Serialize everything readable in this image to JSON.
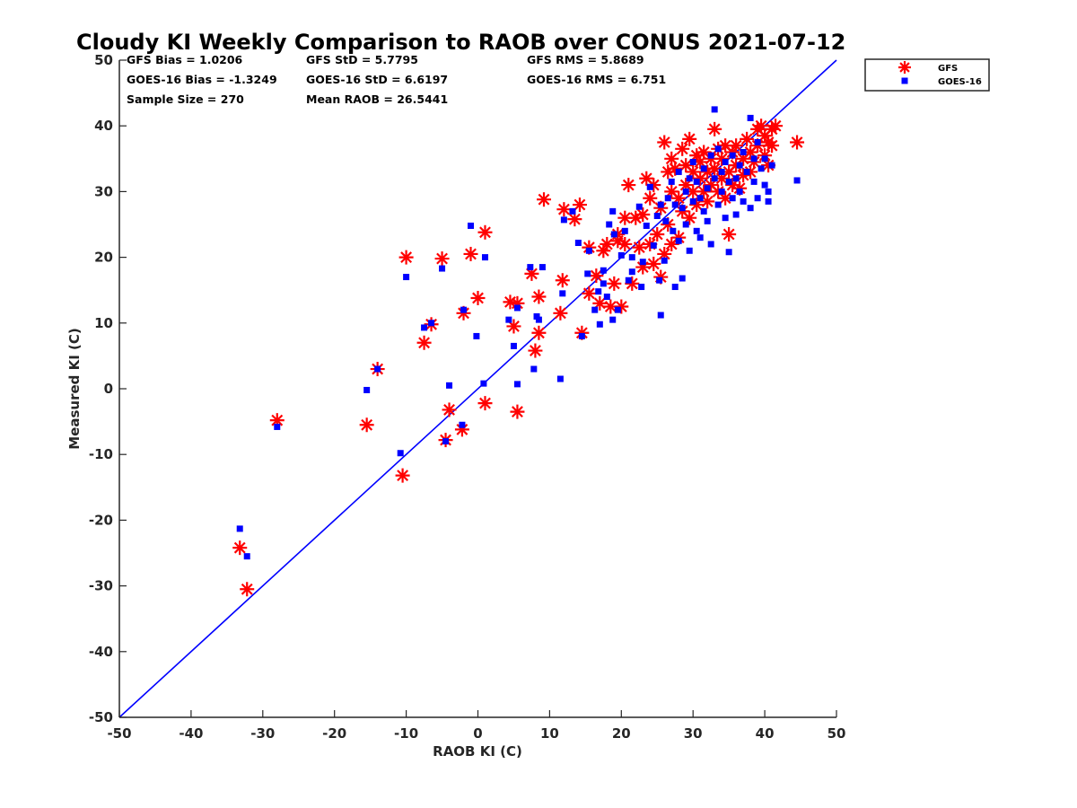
{
  "chart_data": {
    "type": "scatter",
    "title": "Cloudy KI Weekly Comparison to RAOB over CONUS 2021-07-12",
    "xlabel": "RAOB KI (C)",
    "ylabel": "Measured KI (C)",
    "xlim": [
      -50,
      50
    ],
    "ylim": [
      -50,
      50
    ],
    "xticks": [
      "-50",
      "-40",
      "-30",
      "-20",
      "-10",
      "0",
      "10",
      "20",
      "30",
      "40",
      "50"
    ],
    "yticks": [
      "-50",
      "-40",
      "-30",
      "-20",
      "-10",
      "0",
      "10",
      "20",
      "30",
      "40",
      "50"
    ],
    "grid": false,
    "legend_position": "top-right outside",
    "stats": [
      [
        "GFS Bias = 1.0206",
        "GFS StD = 5.7795",
        "GFS RMS = 5.8689"
      ],
      [
        "GOES-16 Bias = -1.3249",
        "GOES-16 StD = 6.6197",
        "GOES-16 RMS = 6.751"
      ],
      [
        "Sample Size = 270",
        "Mean RAOB = 26.5441"
      ]
    ],
    "reference_line": {
      "from": [
        -50,
        -50
      ],
      "to": [
        50,
        50
      ],
      "color": "#0000ff"
    },
    "series": [
      {
        "name": "GFS",
        "marker": "asterisk",
        "color": "#ff0000",
        "points": [
          [
            -33.2,
            -24.2
          ],
          [
            -32.2,
            -30.5
          ],
          [
            -28,
            -4.8
          ],
          [
            -15.5,
            -5.5
          ],
          [
            -14,
            3
          ],
          [
            -10.5,
            -13.2
          ],
          [
            -10,
            20
          ],
          [
            -7.5,
            7
          ],
          [
            -6.5,
            9.8
          ],
          [
            -5,
            19.8
          ],
          [
            -4.5,
            -7.8
          ],
          [
            -4,
            -3.2
          ],
          [
            -2.2,
            -6.2
          ],
          [
            -2,
            11.5
          ],
          [
            -1,
            20.5
          ],
          [
            0,
            13.8
          ],
          [
            1,
            23.8
          ],
          [
            1,
            -2.2
          ],
          [
            4.5,
            13.2
          ],
          [
            5,
            9.5
          ],
          [
            5.5,
            -3.5
          ],
          [
            5.5,
            13
          ],
          [
            7.5,
            17.5
          ],
          [
            8,
            5.8
          ],
          [
            8.5,
            14
          ],
          [
            8.5,
            8.5
          ],
          [
            9.2,
            28.8
          ],
          [
            11.5,
            11.5
          ],
          [
            11.8,
            16.5
          ],
          [
            12,
            27.3
          ],
          [
            13.5,
            25.8
          ],
          [
            14.2,
            28
          ],
          [
            14.5,
            8.5
          ],
          [
            15.5,
            14.5
          ],
          [
            15.5,
            21.5
          ],
          [
            16.5,
            17.2
          ],
          [
            17,
            13
          ],
          [
            17.5,
            21
          ],
          [
            18,
            22
          ],
          [
            18.5,
            12.5
          ],
          [
            19,
            16
          ],
          [
            19.5,
            23.5
          ],
          [
            19.5,
            22.5
          ],
          [
            20,
            12.5
          ],
          [
            20.5,
            26
          ],
          [
            20.5,
            22
          ],
          [
            21,
            31
          ],
          [
            21.5,
            16
          ],
          [
            22,
            26
          ],
          [
            22.5,
            21.5
          ],
          [
            23,
            18.5
          ],
          [
            23,
            26.5
          ],
          [
            23.5,
            32
          ],
          [
            24,
            29
          ],
          [
            24.5,
            19
          ],
          [
            24.5,
            31
          ],
          [
            25,
            23.5
          ],
          [
            25.5,
            17
          ],
          [
            25.5,
            27.5
          ],
          [
            26,
            20.5
          ],
          [
            26,
            37.5
          ],
          [
            26.5,
            33
          ],
          [
            26.5,
            25
          ],
          [
            27,
            22
          ],
          [
            27,
            35
          ],
          [
            27,
            30
          ],
          [
            27.5,
            33.5
          ],
          [
            28,
            29
          ],
          [
            28,
            23
          ],
          [
            28.5,
            36.5
          ],
          [
            28.5,
            27
          ],
          [
            29,
            31
          ],
          [
            29,
            34
          ],
          [
            29.5,
            38
          ],
          [
            29.5,
            26
          ],
          [
            30,
            30
          ],
          [
            30,
            33
          ],
          [
            30.5,
            35.5
          ],
          [
            30.5,
            28
          ],
          [
            31,
            32
          ],
          [
            31,
            34.5
          ],
          [
            31.5,
            30
          ],
          [
            31.5,
            36
          ],
          [
            32,
            33
          ],
          [
            32,
            28.5
          ],
          [
            32.5,
            35
          ],
          [
            32.5,
            31
          ],
          [
            33,
            39.5
          ],
          [
            33,
            33.5
          ],
          [
            33.5,
            36.5
          ],
          [
            33.5,
            30
          ],
          [
            34,
            32
          ],
          [
            34,
            35
          ],
          [
            34.5,
            29
          ],
          [
            34.5,
            37
          ],
          [
            35,
            23.5
          ],
          [
            35,
            33
          ],
          [
            35.5,
            36
          ],
          [
            35.5,
            31
          ],
          [
            36,
            34
          ],
          [
            36,
            37
          ],
          [
            36.5,
            30.5
          ],
          [
            37,
            35
          ],
          [
            37,
            32.5
          ],
          [
            37.5,
            38
          ],
          [
            38,
            33
          ],
          [
            38,
            36
          ],
          [
            38.5,
            34.5
          ],
          [
            39,
            39.5
          ],
          [
            39,
            37
          ],
          [
            39.5,
            40
          ],
          [
            40,
            35.5
          ],
          [
            40,
            38.5
          ],
          [
            40.5,
            37.5
          ],
          [
            40.5,
            34
          ],
          [
            41,
            39.5
          ],
          [
            41,
            37
          ],
          [
            41.5,
            40
          ],
          [
            44.5,
            37.5
          ],
          [
            24,
            22
          ]
        ]
      },
      {
        "name": "GOES-16",
        "marker": "square",
        "color": "#0000ff",
        "points": [
          [
            -33.2,
            -21.3
          ],
          [
            -32.2,
            -25.5
          ],
          [
            -28,
            -5.8
          ],
          [
            -15.5,
            -0.2
          ],
          [
            -14,
            3
          ],
          [
            -10.8,
            -9.8
          ],
          [
            -10,
            17
          ],
          [
            -7.5,
            9.3
          ],
          [
            -6.5,
            10
          ],
          [
            -5,
            18.3
          ],
          [
            -4.5,
            -8
          ],
          [
            -4,
            0.5
          ],
          [
            -2.2,
            -5.5
          ],
          [
            -2,
            12
          ],
          [
            -1,
            24.8
          ],
          [
            -0.2,
            8
          ],
          [
            1,
            20
          ],
          [
            0.8,
            0.8
          ],
          [
            4.3,
            10.5
          ],
          [
            5,
            6.5
          ],
          [
            5.5,
            0.7
          ],
          [
            5.5,
            12.3
          ],
          [
            7.3,
            18.5
          ],
          [
            7.8,
            3
          ],
          [
            8.5,
            10.5
          ],
          [
            8.2,
            11
          ],
          [
            9,
            18.5
          ],
          [
            11.5,
            1.5
          ],
          [
            11.8,
            14.5
          ],
          [
            12,
            25.7
          ],
          [
            13.2,
            27
          ],
          [
            14,
            22.2
          ],
          [
            14.5,
            8
          ],
          [
            15.3,
            17.5
          ],
          [
            15.5,
            21
          ],
          [
            16.3,
            12
          ],
          [
            16.8,
            14.8
          ],
          [
            17,
            9.8
          ],
          [
            17.5,
            16
          ],
          [
            17.5,
            18
          ],
          [
            18,
            14
          ],
          [
            18.3,
            25
          ],
          [
            18.8,
            10.5
          ],
          [
            18.8,
            27
          ],
          [
            19,
            23.5
          ],
          [
            19.5,
            12
          ],
          [
            20,
            20.3
          ],
          [
            20.5,
            24
          ],
          [
            21,
            16.5
          ],
          [
            21.5,
            17.8
          ],
          [
            21.5,
            20
          ],
          [
            22.5,
            27.7
          ],
          [
            22.8,
            15.5
          ],
          [
            23,
            19.3
          ],
          [
            23.5,
            24.8
          ],
          [
            24,
            30.7
          ],
          [
            24.5,
            21.8
          ],
          [
            25,
            26.3
          ],
          [
            25.3,
            16.5
          ],
          [
            25.5,
            11.2
          ],
          [
            25.5,
            28
          ],
          [
            26,
            19.5
          ],
          [
            26.2,
            25.5
          ],
          [
            26.5,
            29
          ],
          [
            27,
            31.5
          ],
          [
            27.2,
            24
          ],
          [
            27.5,
            15.5
          ],
          [
            27.5,
            28
          ],
          [
            28,
            33
          ],
          [
            28,
            22.5
          ],
          [
            28.5,
            27.5
          ],
          [
            28.5,
            16.8
          ],
          [
            29,
            30
          ],
          [
            29,
            25
          ],
          [
            29.5,
            32
          ],
          [
            29.5,
            21
          ],
          [
            30,
            28.5
          ],
          [
            30,
            34.5
          ],
          [
            30.5,
            24
          ],
          [
            30.5,
            31.5
          ],
          [
            31,
            29
          ],
          [
            31,
            23
          ],
          [
            31.5,
            33.5
          ],
          [
            31.5,
            27
          ],
          [
            32,
            30.5
          ],
          [
            32,
            25.5
          ],
          [
            32.5,
            35.5
          ],
          [
            32.5,
            22
          ],
          [
            33,
            42.5
          ],
          [
            33,
            32
          ],
          [
            33.5,
            28
          ],
          [
            33.5,
            36.5
          ],
          [
            34,
            30
          ],
          [
            34,
            33
          ],
          [
            34.5,
            26
          ],
          [
            34.5,
            34.5
          ],
          [
            35,
            20.8
          ],
          [
            35,
            31.5
          ],
          [
            35.5,
            29
          ],
          [
            35.5,
            35.5
          ],
          [
            36,
            32
          ],
          [
            36,
            26.5
          ],
          [
            36.5,
            34
          ],
          [
            36.5,
            30
          ],
          [
            37,
            36
          ],
          [
            37,
            28.5
          ],
          [
            37.5,
            33
          ],
          [
            38,
            41.2
          ],
          [
            38,
            27.5
          ],
          [
            38.5,
            31.5
          ],
          [
            38.5,
            35
          ],
          [
            39,
            29
          ],
          [
            39,
            37.5
          ],
          [
            39.5,
            33.5
          ],
          [
            40,
            31
          ],
          [
            40,
            35
          ],
          [
            40.5,
            28.5
          ],
          [
            40.5,
            30
          ],
          [
            41,
            34
          ],
          [
            44.5,
            31.7
          ]
        ]
      }
    ]
  }
}
